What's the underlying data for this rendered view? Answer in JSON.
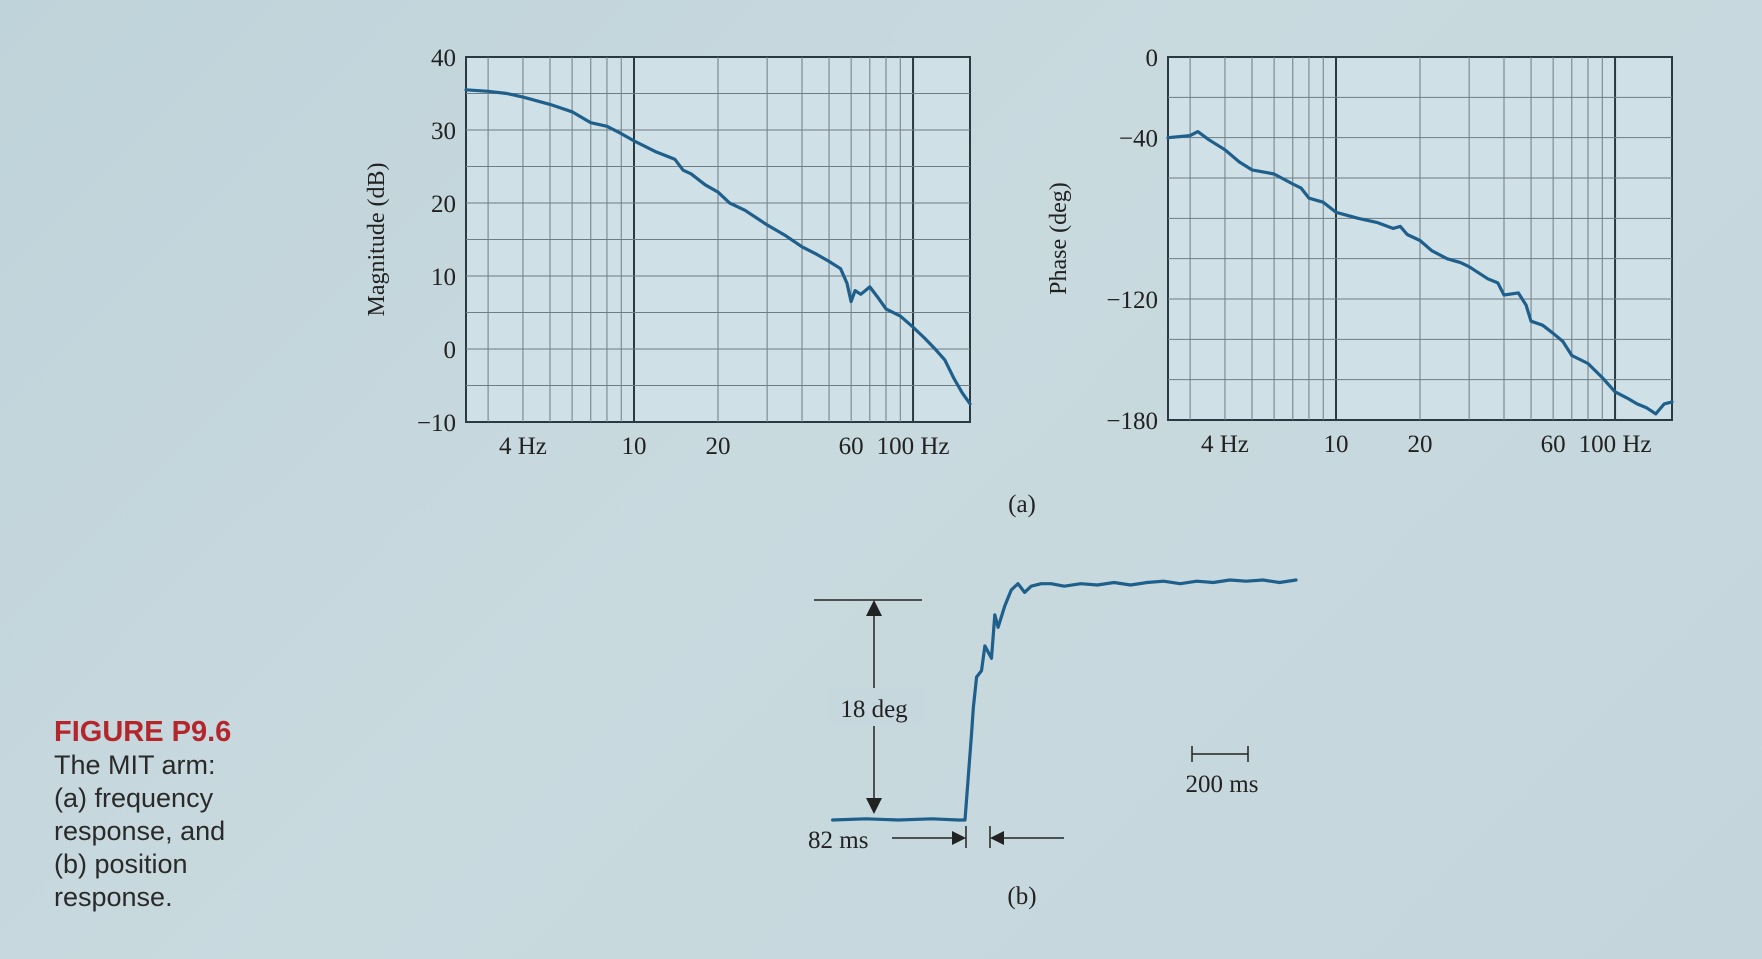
{
  "caption": {
    "title": "FIGURE P9.6",
    "lines": [
      "The MIT arm:",
      "(a) frequency",
      "response, and",
      "(b) position",
      "response."
    ]
  },
  "colors": {
    "curve": "#1f5f8b",
    "caption_title": "#b3262c",
    "grid": "#6f7d84"
  },
  "chart_data": [
    {
      "type": "line",
      "panel": "a-magnitude",
      "ylabel": "Magnitude (dB)",
      "xscale": "log",
      "xlim": [
        2.5,
        160
      ],
      "ylim": [
        -10,
        40
      ],
      "xticks": [
        {
          "v": 4,
          "label": "4 Hz"
        },
        {
          "v": 10,
          "label": "10"
        },
        {
          "v": 20,
          "label": "20"
        },
        {
          "v": 60,
          "label": "60"
        },
        {
          "v": 100,
          "label": "100 Hz"
        }
      ],
      "yticks": [
        {
          "v": 40,
          "label": "40"
        },
        {
          "v": 30,
          "label": "30"
        },
        {
          "v": 20,
          "label": "20"
        },
        {
          "v": 10,
          "label": "10"
        },
        {
          "v": 0,
          "label": "0"
        },
        {
          "v": -10,
          "label": "−10"
        }
      ],
      "grid": true,
      "series": [
        {
          "x": [
            2.5,
            3,
            3.5,
            4,
            5,
            6,
            7,
            8,
            9,
            10,
            12,
            14,
            15,
            16,
            18,
            20,
            22,
            25,
            30,
            35,
            40,
            45,
            50,
            55,
            58,
            60,
            62,
            65,
            70,
            75,
            80,
            90,
            100,
            110,
            120,
            130,
            140,
            150,
            160
          ],
          "y": [
            35.5,
            35.3,
            35,
            34.5,
            33.5,
            32.5,
            31,
            30.5,
            29.5,
            28.5,
            27,
            26,
            24.5,
            24,
            22.5,
            21.5,
            20,
            19,
            17,
            15.5,
            14,
            13,
            12,
            11,
            9,
            6.5,
            8,
            7.5,
            8.5,
            7,
            5.5,
            4.5,
            3,
            1.5,
            0,
            -1.5,
            -4,
            -6,
            -7.5
          ]
        }
      ]
    },
    {
      "type": "line",
      "panel": "a-phase",
      "ylabel": "Phase (deg)",
      "xscale": "log",
      "xlim": [
        2.5,
        160
      ],
      "ylim": [
        -180,
        0
      ],
      "xticks": [
        {
          "v": 4,
          "label": "4 Hz"
        },
        {
          "v": 10,
          "label": "10"
        },
        {
          "v": 20,
          "label": "20"
        },
        {
          "v": 60,
          "label": "60"
        },
        {
          "v": 100,
          "label": "100 Hz"
        }
      ],
      "yticks": [
        {
          "v": 0,
          "label": "0"
        },
        {
          "v": -40,
          "label": "−40"
        },
        {
          "v": -120,
          "label": "−120"
        },
        {
          "v": -180,
          "label": "−180"
        }
      ],
      "grid": true,
      "series": [
        {
          "x": [
            2.5,
            3,
            3.2,
            3.5,
            4,
            4.5,
            5,
            6,
            7,
            7.5,
            8,
            9,
            10,
            12,
            14,
            16,
            17,
            18,
            20,
            22,
            25,
            28,
            30,
            35,
            38,
            40,
            45,
            48,
            50,
            55,
            60,
            65,
            70,
            80,
            90,
            100,
            110,
            120,
            130,
            140,
            150,
            160
          ],
          "y": [
            -40,
            -39,
            -37,
            -41,
            -46,
            -52,
            -56,
            -58,
            -63,
            -65,
            -70,
            -72,
            -77,
            -80,
            -82,
            -85,
            -84,
            -88,
            -91,
            -96,
            -100,
            -102,
            -104,
            -110,
            -112,
            -118,
            -117,
            -123,
            -131,
            -133,
            -137,
            -141,
            -148,
            -152,
            -159,
            -166,
            -169,
            -172,
            -174,
            -177,
            -172,
            -171
          ]
        }
      ]
    },
    {
      "type": "line",
      "panel": "b-position",
      "annotations": {
        "amplitude": "18 deg",
        "delay": "82 ms",
        "scale": "200 ms"
      },
      "xlim": [
        -400,
        1000
      ],
      "ylim": [
        -1,
        20
      ],
      "series": [
        {
          "x": [
            -400,
            -300,
            -200,
            -100,
            -20,
            0,
            10,
            20,
            25,
            35,
            50,
            60,
            80,
            90,
            100,
            120,
            140,
            160,
            180,
            200,
            230,
            260,
            300,
            350,
            400,
            450,
            500,
            550,
            600,
            650,
            700,
            750,
            800,
            850,
            900,
            950,
            1000
          ],
          "y": [
            0,
            0.1,
            0,
            0.1,
            0,
            0,
            3.5,
            7,
            9,
            11.5,
            12,
            14,
            13,
            16.5,
            15.5,
            17.2,
            18.5,
            19,
            18.3,
            18.8,
            19,
            19,
            18.8,
            19,
            18.9,
            19.1,
            18.9,
            19.1,
            19.2,
            19,
            19.2,
            19.1,
            19.3,
            19.2,
            19.3,
            19.1,
            19.3
          ]
        }
      ]
    }
  ],
  "panel_labels": {
    "a": "(a)",
    "b": "(b)"
  }
}
